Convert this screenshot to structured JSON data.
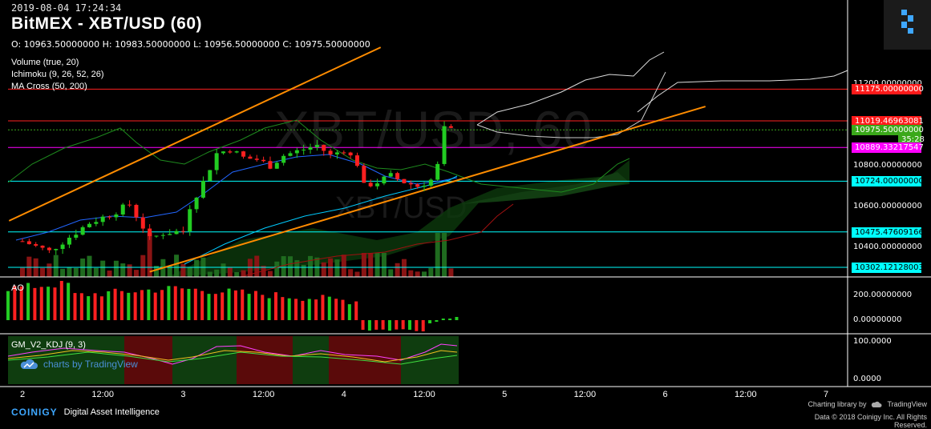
{
  "header": {
    "timestamp": "2019-08-04 17:24:34",
    "title": "BitMEX - XBT/USD (60)",
    "ohlc": "O: 10963.50000000 H: 10983.50000000 L: 10956.50000000 C: 10975.50000000"
  },
  "watermark": {
    "main": "XBT/USD, 60",
    "sub": "XBT/USD"
  },
  "indicators": [
    {
      "label": "Volume (true, 20)"
    },
    {
      "label": "Ichimoku (9, 26, 52, 26)"
    },
    {
      "label": "MA Cross (50, 200)"
    }
  ],
  "panes": {
    "ao": {
      "label": "AO"
    },
    "kdj": {
      "label": "GM_V2_KDJ (9, 3)"
    }
  },
  "price_axis": {
    "ticks": [
      {
        "label": "11200.00000000",
        "y": 11200
      },
      {
        "label": "10800.00000000",
        "y": 10800
      },
      {
        "label": "10600.00000000",
        "y": 10600
      },
      {
        "label": "10400.00000000",
        "y": 10400
      }
    ],
    "badges": [
      {
        "label": "11175.00000000",
        "value": 11175,
        "bg": "#ff1a1a",
        "fg": "#ffffff"
      },
      {
        "label": "11019.46963081",
        "value": 11019.47,
        "bg": "#ff1a1a",
        "fg": "#ffffff"
      },
      {
        "label": "10975.50000000",
        "value": 10975.5,
        "bg": "#3aa81a",
        "fg": "#ffffff"
      },
      {
        "label": "35:28",
        "value": 10930,
        "bg": "#3aa81a",
        "fg": "#ffffff",
        "short": true
      },
      {
        "label": "10889.33217547",
        "value": 10889.33,
        "bg": "#ff00ff",
        "fg": "#ffffff"
      },
      {
        "label": "10724.00000000",
        "value": 10724,
        "bg": "#00ffff",
        "fg": "#000000"
      },
      {
        "label": "10475.47609166",
        "value": 10475.48,
        "bg": "#00ffff",
        "fg": "#000000"
      },
      {
        "label": "10302.12128003",
        "value": 10302.12,
        "bg": "#00ffff",
        "fg": "#000000"
      }
    ]
  },
  "ao_axis": {
    "ticks": [
      {
        "label": "200.00000000",
        "value": 200
      },
      {
        "label": "0.00000000",
        "value": 0
      }
    ]
  },
  "kdj_axis": {
    "ticks": [
      {
        "label": "100.0000",
        "value": 100
      },
      {
        "label": "0.0000",
        "value": 0
      }
    ]
  },
  "time_axis": {
    "labels": [
      {
        "label": "2",
        "hour": 0
      },
      {
        "label": "12:00",
        "hour": 12
      },
      {
        "label": "3",
        "hour": 24
      },
      {
        "label": "12:00",
        "hour": 36
      },
      {
        "label": "4",
        "hour": 48
      },
      {
        "label": "12:00",
        "hour": 60
      },
      {
        "label": "5",
        "hour": 72
      },
      {
        "label": "12:00",
        "hour": 84
      },
      {
        "label": "6",
        "hour": 96
      },
      {
        "label": "12:00",
        "hour": 108
      },
      {
        "label": "7",
        "hour": 120
      }
    ]
  },
  "levels": [
    {
      "value": 11175,
      "color": "#ff2020"
    },
    {
      "value": 11019.47,
      "color": "#ff2020"
    },
    {
      "value": 10975.5,
      "color": "#3aa81a",
      "dashed": true
    },
    {
      "value": 10889.33,
      "color": "#ff00ff"
    },
    {
      "value": 10724,
      "color": "#00ffff"
    },
    {
      "value": 10475.48,
      "color": "#00ffff"
    },
    {
      "value": 10302.12,
      "color": "#00ffff"
    }
  ],
  "trendlines": [
    {
      "from": {
        "hour": -2,
        "price": 10530
      },
      "to": {
        "hour": 53.5,
        "price": 11380
      },
      "color": "#ff8c00"
    },
    {
      "from": {
        "hour": 19,
        "price": 10280
      },
      "to": {
        "hour": 102,
        "price": 11090
      },
      "color": "#ff8c00"
    }
  ],
  "colors": {
    "up": "#22cc22",
    "down": "#ff2020",
    "accent": "#3ea7ff"
  },
  "tradingview": {
    "text": "charts by TradingView"
  },
  "footer": {
    "brand": "COINIGY",
    "tagline": "Digital Asset Intelligence",
    "charting": "Charting library by",
    "tv_brand": "TradingView",
    "copyright": "Data © 2018   Coinigy Inc. All Rights Reserved."
  }
}
